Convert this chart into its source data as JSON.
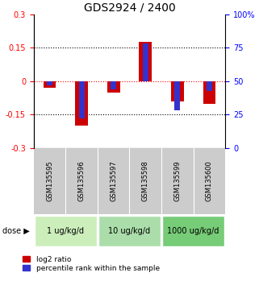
{
  "title": "GDS2924 / 2400",
  "samples": [
    "GSM135595",
    "GSM135596",
    "GSM135597",
    "GSM135598",
    "GSM135599",
    "GSM135600"
  ],
  "log2_ratio": [
    -0.03,
    -0.2,
    -0.05,
    0.175,
    -0.09,
    -0.1
  ],
  "percentile_rank": [
    47,
    22,
    44,
    78,
    28,
    43
  ],
  "doses": [
    {
      "label": "1 ug/kg/d",
      "samples_idx": [
        0,
        1
      ],
      "color": "#cceebb"
    },
    {
      "label": "10 ug/kg/d",
      "samples_idx": [
        2,
        3
      ],
      "color": "#aaddaa"
    },
    {
      "label": "1000 ug/kg/d",
      "samples_idx": [
        4,
        5
      ],
      "color": "#77cc77"
    }
  ],
  "ylim_left": [
    -0.3,
    0.3
  ],
  "ylim_right": [
    0,
    100
  ],
  "yticks_left": [
    -0.3,
    -0.15,
    0,
    0.15,
    0.3
  ],
  "yticks_left_labels": [
    "-0.3",
    "-0.15",
    "0",
    "0.15",
    "0.3"
  ],
  "yticks_right": [
    0,
    25,
    50,
    75,
    100
  ],
  "yticks_right_labels": [
    "0",
    "25",
    "50",
    "75",
    "100%"
  ],
  "hlines_dotted": [
    -0.15,
    0.15
  ],
  "hline_red": 0,
  "bar_color_red": "#cc0000",
  "bar_color_blue": "#3333cc",
  "bar_width": 0.4,
  "blue_bar_width": 0.18,
  "dose_label": "dose",
  "legend_red": "log2 ratio",
  "legend_blue": "percentile rank within the sample",
  "background_sample": "#cccccc",
  "title_fontsize": 10,
  "tick_fontsize": 7,
  "sample_fontsize": 6,
  "dose_fontsize": 7,
  "legend_fontsize": 6.5
}
